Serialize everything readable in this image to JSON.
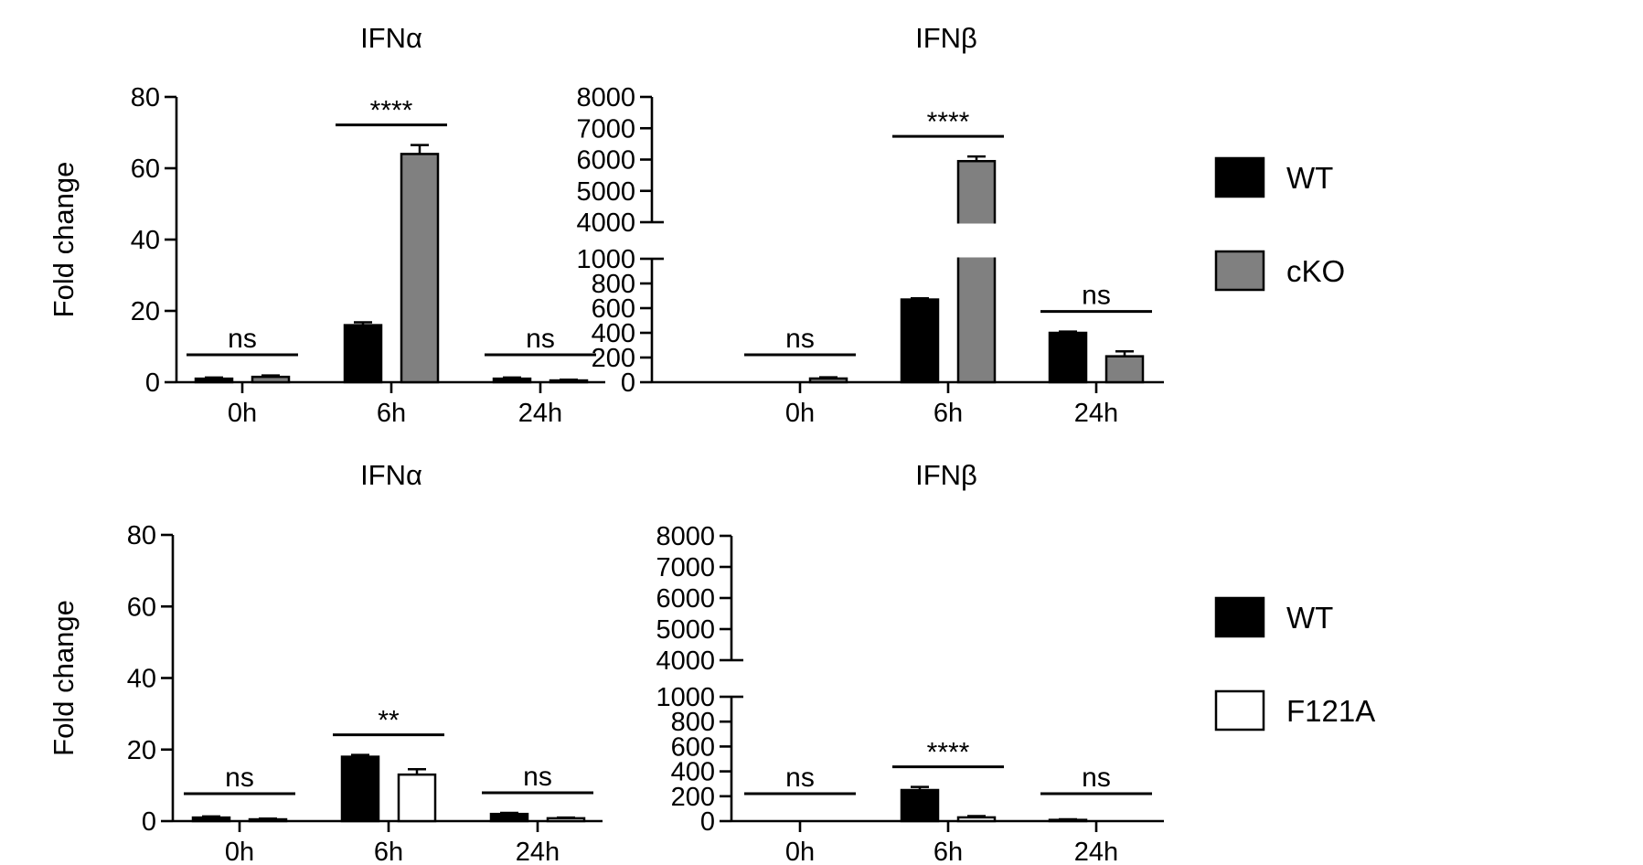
{
  "colors": {
    "wt": "#000000",
    "cko": "#808080",
    "f121a": "#ffffff",
    "edge": "#000000"
  },
  "legends": [
    {
      "items": [
        {
          "label": "WT",
          "color": "#000000"
        },
        {
          "label": "cKO",
          "color": "#808080"
        }
      ]
    },
    {
      "items": [
        {
          "label": "WT",
          "color": "#000000"
        },
        {
          "label": "F121A",
          "color": "#ffffff"
        }
      ]
    }
  ],
  "chart_data": [
    {
      "type": "bar",
      "title": "IFNα",
      "ylabel": "Fold change",
      "ylim": [
        0,
        80
      ],
      "yticks": [
        0,
        20,
        40,
        60,
        80
      ],
      "categories": [
        "0h",
        "6h",
        "24h"
      ],
      "series": [
        {
          "name": "WT",
          "values": [
            1,
            16,
            1
          ],
          "errors": [
            0.3,
            0.8,
            0.3
          ]
        },
        {
          "name": "cKO",
          "values": [
            1.5,
            64,
            0.5
          ],
          "errors": [
            0.4,
            2.5,
            0.2
          ]
        }
      ],
      "significance": [
        "ns",
        "****",
        "ns"
      ]
    },
    {
      "type": "bar",
      "title": "IFNβ",
      "ylabel": "",
      "ylim": [
        0,
        8000
      ],
      "axis_break": [
        1000,
        4000
      ],
      "yticks_lower": [
        0,
        200,
        400,
        600,
        800,
        1000
      ],
      "yticks_upper": [
        4000,
        5000,
        6000,
        7000,
        8000
      ],
      "categories": [
        "0h",
        "6h",
        "24h"
      ],
      "series": [
        {
          "name": "WT",
          "values": [
            0,
            670,
            400
          ],
          "errors": [
            0,
            10,
            10
          ]
        },
        {
          "name": "cKO",
          "values": [
            30,
            5950,
            210
          ],
          "errors": [
            10,
            150,
            40
          ]
        }
      ],
      "significance": [
        "ns",
        "****",
        "ns"
      ]
    },
    {
      "type": "bar",
      "title": "IFNα",
      "ylabel": "Fold change",
      "ylim": [
        0,
        80
      ],
      "yticks": [
        0,
        20,
        40,
        60,
        80
      ],
      "categories": [
        "0h",
        "6h",
        "24h"
      ],
      "series": [
        {
          "name": "WT",
          "values": [
            1,
            18,
            2
          ],
          "errors": [
            0.3,
            0.5,
            0.3
          ]
        },
        {
          "name": "F121A",
          "values": [
            0.5,
            13,
            0.8
          ],
          "errors": [
            0.2,
            1.5,
            0.2
          ]
        }
      ],
      "significance": [
        "ns",
        "**",
        "ns"
      ]
    },
    {
      "type": "bar",
      "title": "IFNβ",
      "ylabel": "",
      "ylim": [
        0,
        8000
      ],
      "axis_break": [
        1000,
        4000
      ],
      "yticks_lower": [
        0,
        200,
        400,
        600,
        800,
        1000
      ],
      "yticks_upper": [
        4000,
        5000,
        6000,
        7000,
        8000
      ],
      "categories": [
        "0h",
        "6h",
        "24h"
      ],
      "series": [
        {
          "name": "WT",
          "values": [
            0,
            250,
            10
          ],
          "errors": [
            0,
            25,
            5
          ]
        },
        {
          "name": "F121A",
          "values": [
            0,
            30,
            0
          ],
          "errors": [
            0,
            10,
            0
          ]
        }
      ],
      "significance": [
        "ns",
        "****",
        "ns"
      ]
    }
  ]
}
